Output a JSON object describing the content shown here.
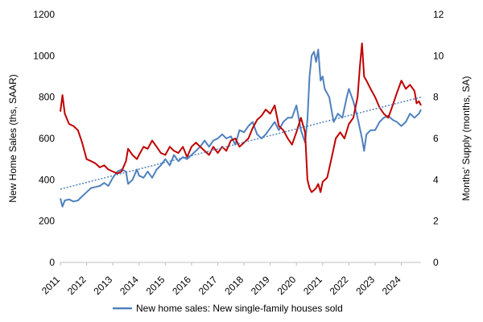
{
  "chart_data": {
    "type": "line",
    "title": "",
    "x_range": [
      2011.0,
      2024.75
    ],
    "x_ticks": [
      "2011",
      "2012",
      "2013",
      "2014",
      "2015",
      "2016",
      "2017",
      "2018",
      "2019",
      "2020",
      "2021",
      "2022",
      "2023",
      "2024"
    ],
    "y_left": {
      "label": "New Home Sales (ths, SAAR)",
      "ylim": [
        0,
        1200
      ],
      "ticks": [
        "0",
        "200",
        "400",
        "600",
        "800",
        "1000",
        "1200"
      ]
    },
    "y_right": {
      "label": "Months' Supply (months, SA)",
      "ylim": [
        0,
        12
      ],
      "ticks": [
        "0",
        "2",
        "4",
        "6",
        "8",
        "10",
        "12"
      ]
    },
    "grid": false,
    "legend_position": "bottom",
    "legend": [
      "New home sales: New single-family houses sold"
    ],
    "series": [
      {
        "name": "New home sales: New single-family houses sold",
        "axis": "left",
        "color": "#4F81BD",
        "points": [
          [
            2011.0,
            310
          ],
          [
            2011.08,
            270
          ],
          [
            2011.17,
            300
          ],
          [
            2011.33,
            305
          ],
          [
            2011.5,
            295
          ],
          [
            2011.67,
            300
          ],
          [
            2011.83,
            320
          ],
          [
            2012.0,
            340
          ],
          [
            2012.17,
            360
          ],
          [
            2012.33,
            365
          ],
          [
            2012.5,
            370
          ],
          [
            2012.67,
            385
          ],
          [
            2012.83,
            370
          ],
          [
            2013.0,
            410
          ],
          [
            2013.17,
            440
          ],
          [
            2013.33,
            450
          ],
          [
            2013.5,
            440
          ],
          [
            2013.58,
            380
          ],
          [
            2013.75,
            400
          ],
          [
            2013.92,
            450
          ],
          [
            2014.0,
            420
          ],
          [
            2014.17,
            410
          ],
          [
            2014.33,
            440
          ],
          [
            2014.5,
            410
          ],
          [
            2014.67,
            450
          ],
          [
            2014.83,
            470
          ],
          [
            2015.0,
            500
          ],
          [
            2015.17,
            470
          ],
          [
            2015.33,
            520
          ],
          [
            2015.5,
            490
          ],
          [
            2015.67,
            510
          ],
          [
            2015.83,
            500
          ],
          [
            2016.0,
            520
          ],
          [
            2016.17,
            540
          ],
          [
            2016.33,
            560
          ],
          [
            2016.5,
            590
          ],
          [
            2016.67,
            560
          ],
          [
            2016.83,
            590
          ],
          [
            2017.0,
            600
          ],
          [
            2017.17,
            620
          ],
          [
            2017.33,
            600
          ],
          [
            2017.5,
            610
          ],
          [
            2017.67,
            570
          ],
          [
            2017.83,
            640
          ],
          [
            2018.0,
            630
          ],
          [
            2018.17,
            660
          ],
          [
            2018.33,
            680
          ],
          [
            2018.5,
            620
          ],
          [
            2018.67,
            600
          ],
          [
            2018.83,
            620
          ],
          [
            2019.0,
            650
          ],
          [
            2019.17,
            680
          ],
          [
            2019.33,
            640
          ],
          [
            2019.5,
            680
          ],
          [
            2019.67,
            700
          ],
          [
            2019.83,
            700
          ],
          [
            2020.0,
            760
          ],
          [
            2020.17,
            640
          ],
          [
            2020.33,
            580
          ],
          [
            2020.42,
            690
          ],
          [
            2020.5,
            900
          ],
          [
            2020.58,
            1000
          ],
          [
            2020.67,
            1020
          ],
          [
            2020.75,
            970
          ],
          [
            2020.83,
            1030
          ],
          [
            2020.92,
            880
          ],
          [
            2021.0,
            900
          ],
          [
            2021.08,
            840
          ],
          [
            2021.25,
            800
          ],
          [
            2021.42,
            680
          ],
          [
            2021.58,
            720
          ],
          [
            2021.75,
            700
          ],
          [
            2021.92,
            800
          ],
          [
            2022.0,
            840
          ],
          [
            2022.17,
            780
          ],
          [
            2022.33,
            700
          ],
          [
            2022.5,
            600
          ],
          [
            2022.58,
            540
          ],
          [
            2022.67,
            620
          ],
          [
            2022.83,
            640
          ],
          [
            2023.0,
            640
          ],
          [
            2023.17,
            680
          ],
          [
            2023.33,
            700
          ],
          [
            2023.5,
            710
          ],
          [
            2023.67,
            690
          ],
          [
            2023.83,
            680
          ],
          [
            2024.0,
            660
          ],
          [
            2024.17,
            680
          ],
          [
            2024.33,
            720
          ],
          [
            2024.5,
            700
          ],
          [
            2024.67,
            720
          ],
          [
            2024.75,
            740
          ]
        ]
      },
      {
        "name": "",
        "axis": "right",
        "color": "#C00000",
        "points": [
          [
            2011.0,
            7.3
          ],
          [
            2011.08,
            8.1
          ],
          [
            2011.17,
            7.2
          ],
          [
            2011.33,
            6.7
          ],
          [
            2011.5,
            6.6
          ],
          [
            2011.67,
            6.4
          ],
          [
            2011.83,
            5.8
          ],
          [
            2012.0,
            5.0
          ],
          [
            2012.17,
            4.9
          ],
          [
            2012.33,
            4.8
          ],
          [
            2012.5,
            4.6
          ],
          [
            2012.67,
            4.7
          ],
          [
            2012.83,
            4.5
          ],
          [
            2013.0,
            4.4
          ],
          [
            2013.17,
            4.3
          ],
          [
            2013.33,
            4.4
          ],
          [
            2013.5,
            4.9
          ],
          [
            2013.58,
            5.5
          ],
          [
            2013.75,
            5.2
          ],
          [
            2013.92,
            5.0
          ],
          [
            2014.0,
            5.2
          ],
          [
            2014.17,
            5.6
          ],
          [
            2014.33,
            5.5
          ],
          [
            2014.5,
            5.9
          ],
          [
            2014.67,
            5.6
          ],
          [
            2014.83,
            5.3
          ],
          [
            2015.0,
            5.2
          ],
          [
            2015.17,
            5.6
          ],
          [
            2015.33,
            5.4
          ],
          [
            2015.5,
            5.3
          ],
          [
            2015.67,
            5.6
          ],
          [
            2015.83,
            5.1
          ],
          [
            2016.0,
            5.6
          ],
          [
            2016.17,
            5.8
          ],
          [
            2016.33,
            5.6
          ],
          [
            2016.5,
            5.4
          ],
          [
            2016.67,
            5.2
          ],
          [
            2016.83,
            5.6
          ],
          [
            2017.0,
            5.3
          ],
          [
            2017.17,
            5.6
          ],
          [
            2017.33,
            5.4
          ],
          [
            2017.5,
            5.9
          ],
          [
            2017.67,
            6.0
          ],
          [
            2017.83,
            5.6
          ],
          [
            2018.0,
            5.8
          ],
          [
            2018.17,
            6.0
          ],
          [
            2018.33,
            6.5
          ],
          [
            2018.5,
            6.9
          ],
          [
            2018.67,
            7.1
          ],
          [
            2018.83,
            7.4
          ],
          [
            2019.0,
            7.2
          ],
          [
            2019.17,
            7.6
          ],
          [
            2019.33,
            6.6
          ],
          [
            2019.5,
            6.4
          ],
          [
            2019.67,
            6.0
          ],
          [
            2019.83,
            5.7
          ],
          [
            2020.0,
            6.3
          ],
          [
            2020.17,
            7.0
          ],
          [
            2020.33,
            6.3
          ],
          [
            2020.42,
            4.0
          ],
          [
            2020.5,
            3.6
          ],
          [
            2020.58,
            3.4
          ],
          [
            2020.67,
            3.5
          ],
          [
            2020.75,
            3.6
          ],
          [
            2020.83,
            3.8
          ],
          [
            2020.92,
            3.4
          ],
          [
            2021.0,
            3.9
          ],
          [
            2021.17,
            4.1
          ],
          [
            2021.33,
            5.0
          ],
          [
            2021.5,
            6.0
          ],
          [
            2021.67,
            6.3
          ],
          [
            2021.83,
            6.0
          ],
          [
            2022.0,
            6.7
          ],
          [
            2022.17,
            7.0
          ],
          [
            2022.33,
            8.0
          ],
          [
            2022.42,
            9.5
          ],
          [
            2022.5,
            10.6
          ],
          [
            2022.58,
            9.0
          ],
          [
            2022.67,
            8.8
          ],
          [
            2022.83,
            8.4
          ],
          [
            2023.0,
            8.0
          ],
          [
            2023.17,
            7.5
          ],
          [
            2023.33,
            7.2
          ],
          [
            2023.5,
            7.0
          ],
          [
            2023.67,
            7.6
          ],
          [
            2023.83,
            8.2
          ],
          [
            2024.0,
            8.8
          ],
          [
            2024.17,
            8.4
          ],
          [
            2024.33,
            8.6
          ],
          [
            2024.5,
            8.3
          ],
          [
            2024.58,
            7.7
          ],
          [
            2024.67,
            7.8
          ],
          [
            2024.75,
            7.6
          ]
        ]
      },
      {
        "name": "",
        "axis": "left",
        "color": "#4F81BD",
        "style": "dotted",
        "points": [
          [
            2011.0,
            355
          ],
          [
            2024.75,
            800
          ]
        ]
      }
    ]
  }
}
